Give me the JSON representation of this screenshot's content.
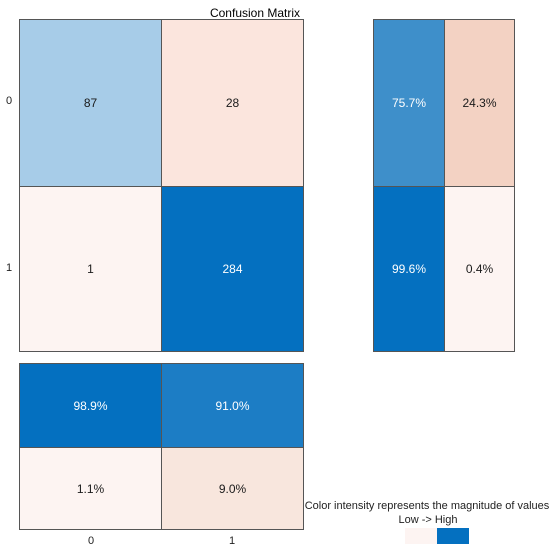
{
  "chart_data": {
    "type": "heatmap",
    "title": "Confusion Matrix",
    "row_labels": [
      "0",
      "1"
    ],
    "col_labels": [
      "0",
      "1"
    ],
    "matrix": [
      [
        87,
        28
      ],
      [
        1,
        284
      ]
    ],
    "row_summary": [
      [
        "75.7%",
        "24.3%"
      ],
      [
        "99.6%",
        "0.4%"
      ]
    ],
    "col_summary": [
      [
        "98.9%",
        "91.0%"
      ],
      [
        "1.1%",
        "9.0%"
      ]
    ],
    "legend": {
      "text": "Color intensity represents the magnitude of values",
      "scale": "Low -> High",
      "low_color": "#fdf4f2",
      "high_color": "#0470c0"
    }
  },
  "colors": {
    "main": [
      [
        "#a7cce8",
        "#fbe5dd"
      ],
      [
        "#fdf4f2",
        "#0470c0"
      ]
    ],
    "row_summary": [
      [
        "#3e8fca",
        "#f3d2c3"
      ],
      [
        "#0470c0",
        "#fdf4f2"
      ]
    ],
    "col_summary": [
      [
        "#0470c0",
        "#1c7dc5"
      ],
      [
        "#fdf4f2",
        "#f8e6dd"
      ]
    ]
  }
}
